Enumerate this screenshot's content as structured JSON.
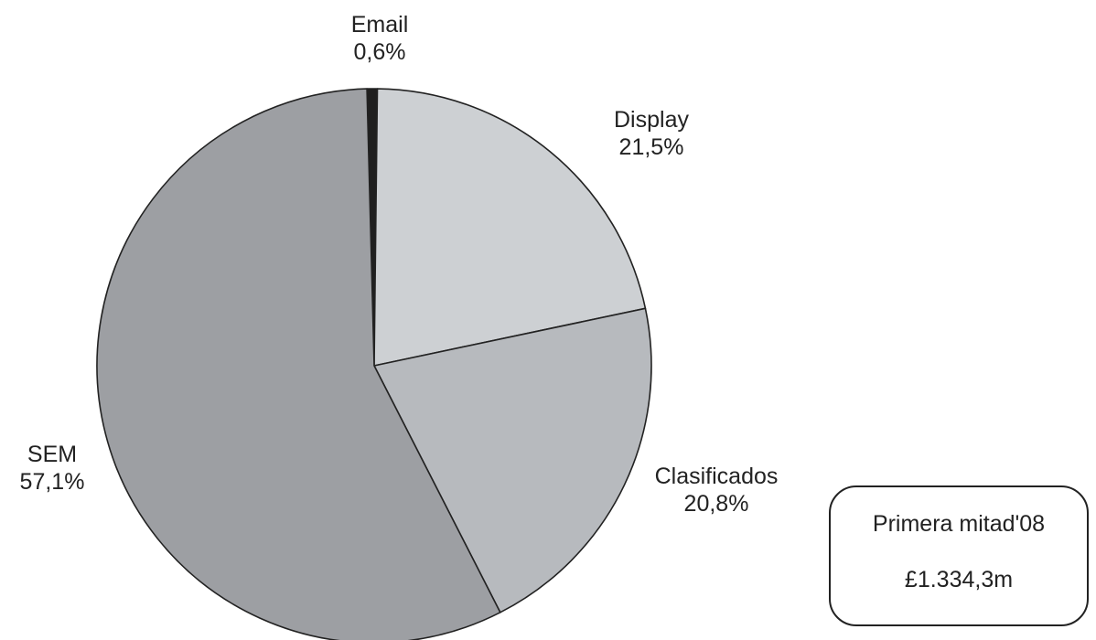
{
  "chart_data": {
    "type": "pie",
    "slices": [
      {
        "label": "Email",
        "value": 0.6,
        "value_label": "0,6%",
        "color": "#1f1f1f"
      },
      {
        "label": "Display",
        "value": 21.5,
        "value_label": "21,5%",
        "color": "#cdd0d3"
      },
      {
        "label": "Clasificados",
        "value": 20.8,
        "value_label": "20,8%",
        "color": "#b7babe"
      },
      {
        "label": "SEM",
        "value": 57.1,
        "value_label": "57,1%",
        "color": "#9d9fa3"
      }
    ]
  },
  "summary": {
    "line1": "Primera mitad'08",
    "line2": "£1.334,3m"
  }
}
